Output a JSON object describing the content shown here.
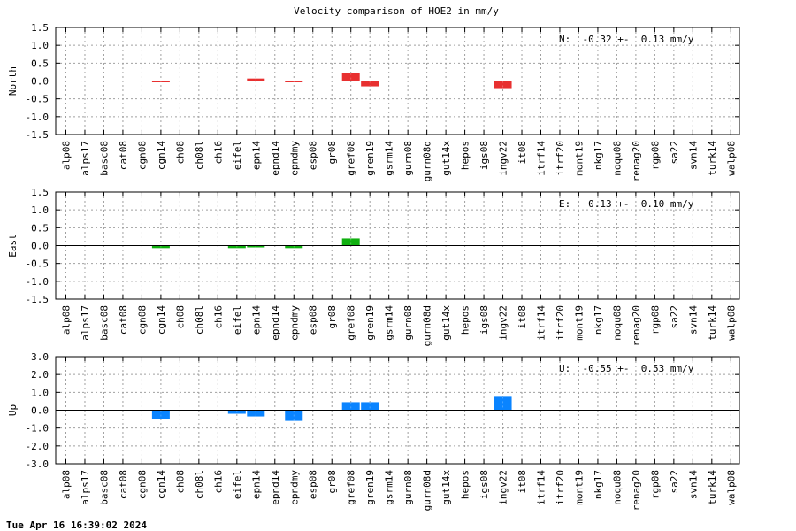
{
  "title": "Velocity comparison of HOE2 in mm/y",
  "footer": "Tue Apr 16 16:39:02 2024",
  "chart_data": [
    {
      "type": "bar",
      "ylabel": "North",
      "annotation": "N:  -0.32 +-  0.13 mm/y",
      "ylim": [
        -1.5,
        1.5
      ],
      "yticks": [
        1.5,
        1.0,
        0.5,
        0.0,
        -0.5,
        -1.0,
        -1.5
      ],
      "ytick_labels": [
        "1.5",
        "1.0",
        "0.5",
        "0.0",
        "-0.5",
        "-1.0",
        "-1.5"
      ],
      "color": "#e83030",
      "grid": true,
      "categories": [
        "alp08",
        "alps17",
        "basc08",
        "cat08",
        "cgn08",
        "cgn14",
        "ch08",
        "ch08l",
        "ch16",
        "eifel",
        "epn14",
        "epnd14",
        "epndmy",
        "esp08",
        "gr08",
        "gref08",
        "gren19",
        "gsrm14",
        "gurn08",
        "gurn08d",
        "gut14x",
        "hepos",
        "igs08",
        "ingv22",
        "it08",
        "itrf14",
        "itrf20",
        "mont19",
        "nkg17",
        "noqu08",
        "renag20",
        "rgp08",
        "sa22",
        "svn14",
        "turk14",
        "walp08"
      ],
      "values": [
        0,
        0,
        0,
        0,
        0,
        -0.02,
        0,
        0,
        0,
        0,
        0.07,
        0,
        -0.02,
        0,
        0,
        0.22,
        -0.15,
        0,
        0,
        0,
        0,
        0,
        0,
        -0.2,
        0,
        0,
        0,
        0,
        0,
        0,
        0,
        0,
        0,
        0,
        0,
        0
      ]
    },
    {
      "type": "bar",
      "ylabel": "East",
      "annotation": "E:   0.13 +-  0.10 mm/y",
      "ylim": [
        -1.5,
        1.5
      ],
      "yticks": [
        1.5,
        1.0,
        0.5,
        0.0,
        -0.5,
        -1.0,
        -1.5
      ],
      "ytick_labels": [
        "1.5",
        "1.0",
        "0.5",
        "0.0",
        "-0.5",
        "-1.0",
        "-1.5"
      ],
      "color": "#10b010",
      "grid": true,
      "categories": [
        "alp08",
        "alps17",
        "basc08",
        "cat08",
        "cgn08",
        "cgn14",
        "ch08",
        "ch08l",
        "ch16",
        "eifel",
        "epn14",
        "epnd14",
        "epndmy",
        "esp08",
        "gr08",
        "gref08",
        "gren19",
        "gsrm14",
        "gurn08",
        "gurn08d",
        "gut14x",
        "hepos",
        "igs08",
        "ingv22",
        "it08",
        "itrf14",
        "itrf20",
        "mont19",
        "nkg17",
        "noqu08",
        "renag20",
        "rgp08",
        "sa22",
        "svn14",
        "turk14",
        "walp08"
      ],
      "values": [
        0,
        0,
        0,
        0,
        0,
        -0.07,
        0,
        0,
        0,
        -0.07,
        -0.05,
        0,
        -0.07,
        0,
        0,
        0.2,
        0,
        0,
        0,
        0,
        0,
        0,
        0,
        0,
        0,
        0,
        0,
        0,
        0,
        0,
        0,
        0,
        0,
        0,
        0,
        0
      ]
    },
    {
      "type": "bar",
      "ylabel": "Up",
      "annotation": "U:  -0.55 +-  0.53 mm/y",
      "ylim": [
        -3.0,
        3.0
      ],
      "yticks": [
        3.0,
        2.0,
        1.0,
        0.0,
        -1.0,
        -2.0,
        -3.0
      ],
      "ytick_labels": [
        "3.0",
        "2.0",
        "1.0",
        "0.0",
        "-1.0",
        "-2.0",
        "-3.0"
      ],
      "color": "#0a84ff",
      "grid": true,
      "categories": [
        "alp08",
        "alps17",
        "basc08",
        "cat08",
        "cgn08",
        "cgn14",
        "ch08",
        "ch08l",
        "ch16",
        "eifel",
        "epn14",
        "epnd14",
        "epndmy",
        "esp08",
        "gr08",
        "gref08",
        "gren19",
        "gsrm14",
        "gurn08",
        "gurn08d",
        "gut14x",
        "hepos",
        "igs08",
        "ingv22",
        "it08",
        "itrf14",
        "itrf20",
        "mont19",
        "nkg17",
        "noqu08",
        "renag20",
        "rgp08",
        "sa22",
        "svn14",
        "turk14",
        "walp08"
      ],
      "values": [
        0,
        0,
        0,
        0,
        0,
        -0.5,
        0,
        0,
        0,
        -0.2,
        -0.35,
        0,
        -0.6,
        0,
        0,
        0.45,
        0.45,
        0,
        0,
        0,
        0,
        0,
        0,
        0.75,
        0,
        0,
        0,
        0,
        0,
        0,
        0,
        0,
        0,
        0,
        0,
        0
      ]
    }
  ]
}
